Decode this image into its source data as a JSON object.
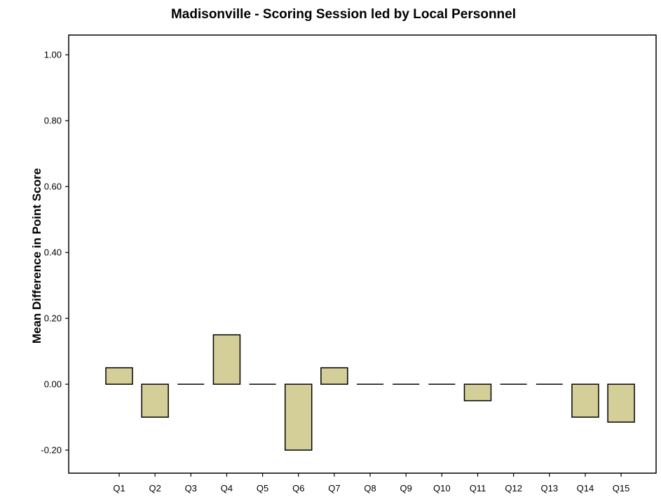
{
  "chart_data": {
    "type": "bar",
    "title": "Madisonville - Scoring Session led by Local Personnel",
    "xlabel": "",
    "ylabel": "Mean Difference in Point Score",
    "categories": [
      "Q1",
      "Q2",
      "Q3",
      "Q4",
      "Q5",
      "Q6",
      "Q7",
      "Q8",
      "Q9",
      "Q10",
      "Q11",
      "Q12",
      "Q13",
      "Q14",
      "Q15"
    ],
    "values": [
      0.05,
      -0.1,
      0.0,
      0.15,
      0.0,
      -0.2,
      0.05,
      0.0,
      0.0,
      0.0,
      -0.05,
      0.0,
      0.0,
      -0.1,
      -0.115
    ],
    "ylim": [
      -0.27,
      1.06
    ],
    "yticks": [
      -0.2,
      0.0,
      0.2,
      0.4,
      0.6,
      0.8,
      1.0
    ],
    "ytick_labels": [
      "-0.20",
      "0.00",
      "0.20",
      "0.40",
      "0.60",
      "0.80",
      "1.00"
    ],
    "grid": false,
    "colors": {
      "bar_fill": "#d4cf98",
      "bar_stroke": "#000000"
    }
  }
}
